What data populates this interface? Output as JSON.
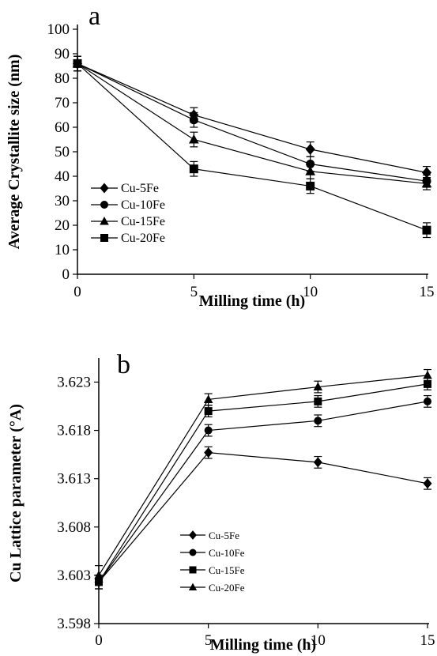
{
  "chart_data": [
    {
      "type": "line",
      "panel_label": "a",
      "xlabel": "Milling time (h)",
      "ylabel": "Average Crystallite size (nm)",
      "x": [
        0,
        5,
        10,
        15
      ],
      "xlim": [
        0,
        15
      ],
      "ylim": [
        0,
        100
      ],
      "x_ticks": [
        "0",
        "5",
        "10",
        "15"
      ],
      "y_ticks": [
        "0",
        "10",
        "20",
        "30",
        "40",
        "50",
        "60",
        "70",
        "80",
        "90",
        "100"
      ],
      "grid": false,
      "legend_position": "bottom-left",
      "series": [
        {
          "name": "Cu-5Fe",
          "marker": "diamond",
          "values": [
            86,
            65,
            51,
            41.5
          ],
          "errors": [
            3,
            3,
            3,
            2.5
          ]
        },
        {
          "name": "Cu-10Fe",
          "marker": "circle",
          "values": [
            86,
            63,
            45,
            38
          ],
          "errors": [
            3,
            3,
            3,
            2.5
          ]
        },
        {
          "name": "Cu-15Fe",
          "marker": "triangle",
          "values": [
            86,
            55,
            42,
            37
          ],
          "errors": [
            3,
            3,
            3,
            2.5
          ]
        },
        {
          "name": "Cu-20Fe",
          "marker": "square",
          "values": [
            86,
            43,
            36,
            18
          ],
          "errors": [
            3,
            3,
            3,
            3
          ]
        }
      ]
    },
    {
      "type": "line",
      "panel_label": "b",
      "xlabel": "Milling time (h)",
      "ylabel": "Cu Lattice parameter (°A)",
      "x": [
        0,
        5,
        10,
        15
      ],
      "xlim": [
        0,
        15
      ],
      "ylim": [
        3.598,
        3.625
      ],
      "x_ticks": [
        "0",
        "5",
        "10",
        "15"
      ],
      "y_ticks": [
        "3.598",
        "3.603",
        "3.608",
        "3.613",
        "3.618",
        "3.623"
      ],
      "y_tick_values": [
        3.598,
        3.603,
        3.608,
        3.613,
        3.618,
        3.623
      ],
      "grid": false,
      "legend_position": "bottom-center",
      "series": [
        {
          "name": "Cu-5Fe",
          "marker": "diamond",
          "values": [
            3.6023,
            3.6157,
            3.6147,
            3.6125
          ],
          "errors": [
            0.0007,
            0.0006,
            0.0006,
            0.0006
          ]
        },
        {
          "name": "Cu-10Fe",
          "marker": "circle",
          "values": [
            3.6023,
            3.618,
            3.619,
            3.621
          ],
          "errors": [
            0.0007,
            0.0006,
            0.0006,
            0.0006
          ]
        },
        {
          "name": "Cu-15Fe",
          "marker": "square",
          "values": [
            3.6023,
            3.62,
            3.621,
            3.6228
          ],
          "errors": [
            0.0007,
            0.0006,
            0.0006,
            0.0006
          ]
        },
        {
          "name": "Cu-20Fe",
          "marker": "triangle",
          "values": [
            3.603,
            3.6212,
            3.6225,
            3.6237
          ],
          "errors": [
            0.001,
            0.0006,
            0.0006,
            0.0006
          ]
        }
      ]
    }
  ]
}
